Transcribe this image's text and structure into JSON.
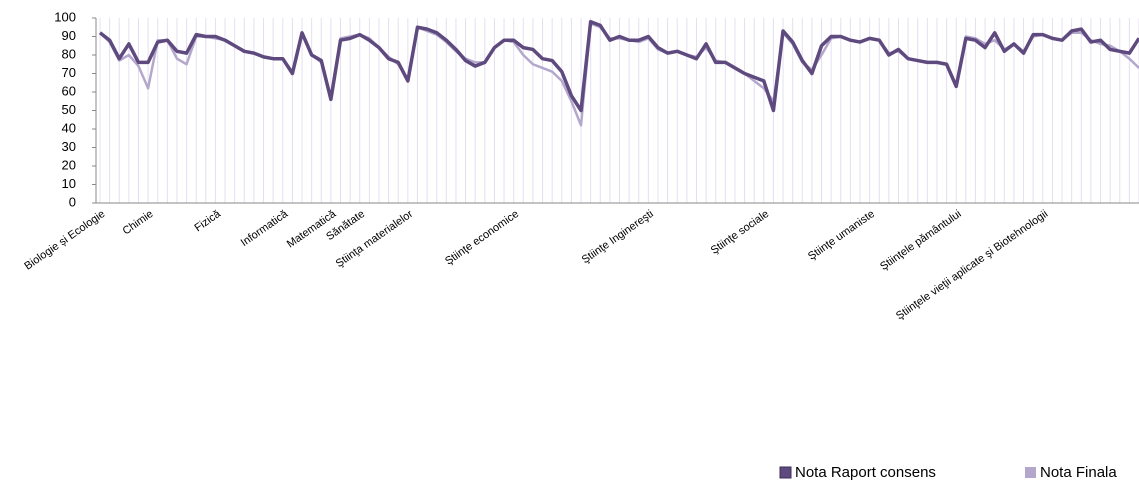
{
  "chart_data": {
    "type": "line",
    "categories": [
      "Biologie și Ecologie",
      null,
      null,
      null,
      null,
      "Chimie",
      null,
      null,
      null,
      null,
      null,
      null,
      "Fizică",
      null,
      null,
      null,
      null,
      null,
      null,
      "Informatică",
      null,
      null,
      null,
      null,
      "Matematică",
      null,
      null,
      "Sănătate",
      null,
      null,
      null,
      null,
      "Ştiinţa materialelor",
      null,
      null,
      null,
      null,
      null,
      null,
      null,
      null,
      null,
      null,
      "Ştiinţe economice",
      null,
      null,
      null,
      null,
      null,
      null,
      null,
      null,
      null,
      null,
      null,
      null,
      null,
      "Ştiinţe Inginereşti",
      null,
      null,
      null,
      null,
      null,
      null,
      null,
      null,
      null,
      null,
      null,
      "Ştiinţe sociale",
      null,
      null,
      null,
      null,
      null,
      null,
      null,
      null,
      null,
      null,
      "Ştiinţe umaniste",
      null,
      null,
      null,
      null,
      null,
      null,
      null,
      null,
      "Ştiinţele pământului",
      null,
      null,
      null,
      null,
      null,
      null,
      null,
      null,
      "Ştiinţele vieţii aplicate şi Biotehnologii",
      null,
      null,
      null,
      null,
      null,
      null,
      null,
      null,
      null,
      null
    ],
    "series": [
      {
        "name": "Nota Finala",
        "color": "#b3a8cc",
        "values": [
          92,
          87,
          77,
          80,
          74,
          62,
          88,
          88,
          78,
          75,
          90,
          90,
          89,
          88,
          85,
          82,
          81,
          79,
          78,
          78,
          71,
          91,
          80,
          76,
          58,
          89,
          90,
          91,
          89,
          84,
          79,
          75,
          67,
          95,
          93,
          91,
          87,
          82,
          78,
          76,
          76,
          84,
          88,
          87,
          80,
          75,
          73,
          71,
          66,
          55,
          42,
          97,
          95,
          89,
          89,
          88,
          87,
          89,
          83,
          81,
          82,
          80,
          79,
          84,
          77,
          76,
          73,
          70,
          66,
          62,
          55,
          92,
          86,
          76,
          72,
          80,
          89,
          90,
          88,
          87,
          89,
          88,
          81,
          82,
          78,
          77,
          76,
          76,
          75,
          64,
          90,
          89,
          86,
          88,
          83,
          86,
          82,
          90,
          91,
          89,
          88,
          92,
          92,
          88,
          86,
          85,
          82,
          78,
          73
        ]
      },
      {
        "name": "Nota Raport consens",
        "color": "#5e4a7e",
        "values": [
          92,
          88,
          78,
          86,
          76,
          76,
          87,
          88,
          82,
          81,
          91,
          90,
          90,
          88,
          85,
          82,
          81,
          79,
          78,
          78,
          70,
          92,
          80,
          77,
          56,
          88,
          89,
          91,
          88,
          84,
          78,
          76,
          66,
          95,
          94,
          92,
          88,
          83,
          77,
          74,
          76,
          84,
          88,
          88,
          84,
          83,
          78,
          77,
          71,
          58,
          50,
          98,
          96,
          88,
          90,
          88,
          88,
          90,
          84,
          81,
          82,
          80,
          78,
          86,
          76,
          76,
          73,
          70,
          68,
          66,
          50,
          93,
          87,
          77,
          70,
          85,
          90,
          90,
          88,
          87,
          89,
          88,
          80,
          83,
          78,
          77,
          76,
          76,
          75,
          63,
          89,
          88,
          84,
          92,
          82,
          86,
          81,
          91,
          91,
          89,
          88,
          93,
          94,
          87,
          88,
          83,
          82,
          81,
          89
        ]
      }
    ],
    "ylim": [
      0,
      100
    ],
    "yticks": [
      0,
      10,
      20,
      30,
      40,
      50,
      60,
      70,
      80,
      90,
      100
    ],
    "grid": true,
    "legend": "bottom-right"
  }
}
